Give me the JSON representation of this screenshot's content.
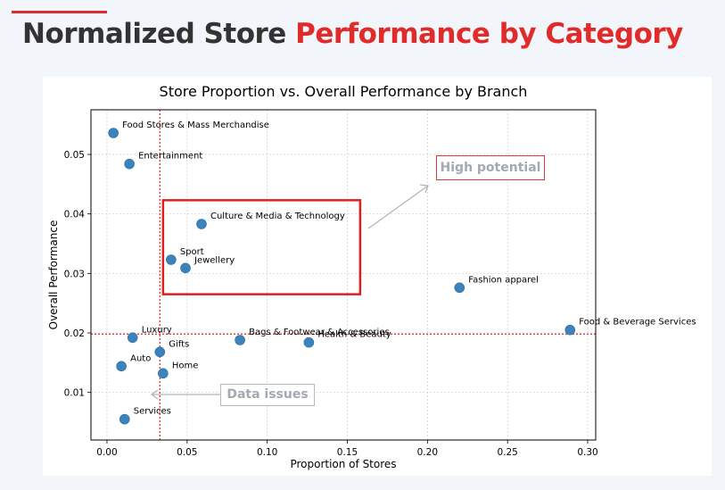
{
  "slide": {
    "title_part1": "Normalized Store",
    "title_part2": "Performance by Category"
  },
  "colors": {
    "accent": "#e02b2b",
    "title_dark": "#333333",
    "marker": "#3a83bd",
    "highlight_box": "#e02020",
    "reference_line": "#e02020"
  },
  "annotations": {
    "high_potential": "High potential",
    "data_issues": "Data issues"
  },
  "chart_data": {
    "type": "scatter",
    "title": "Store Proportion vs. Overall Performance by Branch",
    "xlabel": "Proportion of Stores",
    "ylabel": "Overall Performance",
    "xlim": [
      -0.01,
      0.305
    ],
    "ylim": [
      0.002,
      0.0575
    ],
    "xticks": [
      "0.00",
      "0.05",
      "0.10",
      "0.15",
      "0.20",
      "0.25",
      "0.30"
    ],
    "yticks": [
      "0.01",
      "0.02",
      "0.03",
      "0.04",
      "0.05"
    ],
    "grid": true,
    "reference_lines": {
      "x": 0.033,
      "y": 0.0198
    },
    "highlight_region": {
      "x": [
        0.035,
        0.158
      ],
      "y": [
        0.0265,
        0.0423
      ]
    },
    "points": [
      {
        "label": "Food Stores & Mass Merchandise",
        "x": 0.004,
        "y": 0.0536
      },
      {
        "label": "Entertainment",
        "x": 0.014,
        "y": 0.0484
      },
      {
        "label": "Culture & Media & Technology",
        "x": 0.059,
        "y": 0.0383
      },
      {
        "label": "Sport",
        "x": 0.04,
        "y": 0.0323
      },
      {
        "label": "Jewellery",
        "x": 0.049,
        "y": 0.0309
      },
      {
        "label": "Fashion apparel",
        "x": 0.22,
        "y": 0.0276
      },
      {
        "label": "Food & Beverage Services",
        "x": 0.289,
        "y": 0.0205
      },
      {
        "label": "Luxury",
        "x": 0.016,
        "y": 0.0192
      },
      {
        "label": "Bags & Footwear & Accessories",
        "x": 0.083,
        "y": 0.0188
      },
      {
        "label": "Health & Beauty",
        "x": 0.126,
        "y": 0.0184
      },
      {
        "label": "Gifts",
        "x": 0.033,
        "y": 0.0168
      },
      {
        "label": "Auto",
        "x": 0.009,
        "y": 0.0144
      },
      {
        "label": "Home",
        "x": 0.035,
        "y": 0.0132
      },
      {
        "label": "Services",
        "x": 0.011,
        "y": 0.0055
      }
    ]
  }
}
